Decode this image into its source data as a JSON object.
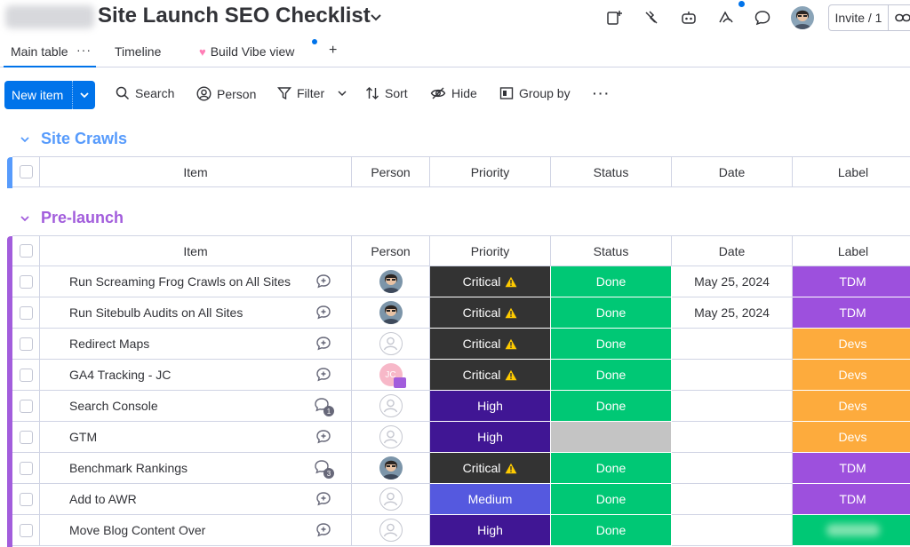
{
  "header": {
    "board_title": "Site Launch SEO Checklist",
    "invite_label": "Invite / 1"
  },
  "tabs": [
    {
      "label": "Main table"
    },
    {
      "label": "Timeline"
    },
    {
      "label": "Build Vibe view"
    }
  ],
  "toolbar": {
    "new_item": "New item",
    "search": "Search",
    "person": "Person",
    "filter": "Filter",
    "sort": "Sort",
    "hide": "Hide",
    "group_by": "Group by"
  },
  "columns": [
    "Item",
    "Person",
    "Priority",
    "Status",
    "Date",
    "Label"
  ],
  "colors": {
    "accent": "#0073ea",
    "site_crawls": "#579bfc",
    "pre_launch": "#a25ddc",
    "critical": "#333333",
    "high": "#401694",
    "medium": "#5559df",
    "done": "#00c875",
    "empty_status": "#c4c4c4",
    "tdm": "#9d50dd",
    "devs": "#fdab3d"
  },
  "groups": [
    {
      "name": "Site Crawls",
      "rows": []
    },
    {
      "name": "Pre-launch",
      "rows": [
        {
          "item": "Run Screaming Frog Crawls on All Sites",
          "updates": "",
          "person": "photo",
          "priority": "Critical",
          "status": "Done",
          "date": "May 25, 2024",
          "label": "TDM"
        },
        {
          "item": "Run Sitebulb Audits on All Sites",
          "updates": "",
          "person": "photo",
          "priority": "Critical",
          "status": "Done",
          "date": "May 25, 2024",
          "label": "TDM"
        },
        {
          "item": "Redirect Maps",
          "updates": "",
          "person": "empty",
          "priority": "Critical",
          "status": "Done",
          "date": "",
          "label": "Devs"
        },
        {
          "item": "GA4 Tracking - JC",
          "updates": "",
          "person": "JC",
          "priority": "Critical",
          "status": "Done",
          "date": "",
          "label": "Devs"
        },
        {
          "item": "Search Console",
          "updates": "1",
          "person": "empty",
          "priority": "High",
          "status": "Done",
          "date": "",
          "label": "Devs"
        },
        {
          "item": "GTM",
          "updates": "",
          "person": "empty",
          "priority": "High",
          "status": "",
          "date": "",
          "label": "Devs"
        },
        {
          "item": "Benchmark Rankings",
          "updates": "3",
          "person": "photo",
          "priority": "Critical",
          "status": "Done",
          "date": "",
          "label": "TDM"
        },
        {
          "item": "Add to AWR",
          "updates": "",
          "person": "empty",
          "priority": "Medium",
          "status": "Done",
          "date": "",
          "label": "TDM"
        },
        {
          "item": "Move Blog Content Over",
          "updates": "",
          "person": "empty",
          "priority": "High",
          "status": "Done",
          "date": "",
          "label": "blurred"
        }
      ]
    }
  ]
}
